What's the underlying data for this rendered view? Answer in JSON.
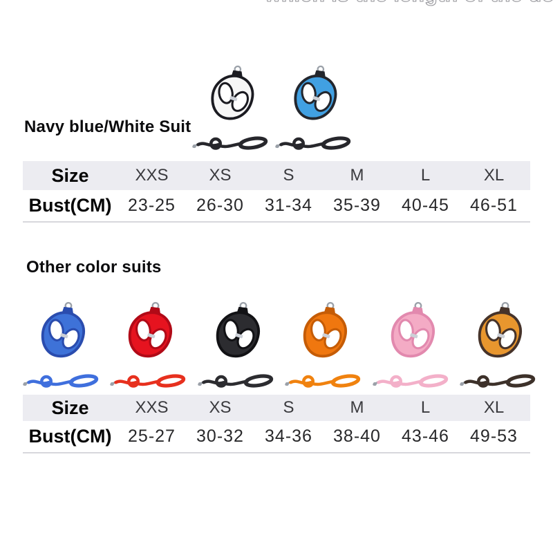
{
  "page": {
    "background": "#ffffff"
  },
  "top_caption": "which is the length of the dog's bust.",
  "metal_color": "#9ba1a9",
  "reflective_strip_color": "#ccd0d7",
  "table_header_bg": "#ececf1",
  "sections": [
    {
      "heading": "Navy blue/White Suit",
      "products": [
        {
          "name": "navy-blue-white",
          "body": "#f6f6f6",
          "trim": "#1b1b21",
          "leash": "#27272c"
        },
        {
          "name": "blue-sky",
          "body": "#41a0e2",
          "trim": "#23262d",
          "leash": "#27272c"
        }
      ],
      "table": {
        "size_label": "Size",
        "bust_label": "Bust(CM)",
        "sizes": [
          "XXS",
          "XS",
          "S",
          "M",
          "L",
          "XL"
        ],
        "busts": [
          "23-25",
          "26-30",
          "31-34",
          "35-39",
          "40-45",
          "46-51"
        ]
      }
    },
    {
      "heading": "Other color suits",
      "products": [
        {
          "name": "blue",
          "body": "#3e72d8",
          "trim": "#2a4cae",
          "leash": "#3f6fdd"
        },
        {
          "name": "red",
          "body": "#e6131f",
          "trim": "#b10a17",
          "leash": "#e7301e"
        },
        {
          "name": "black",
          "body": "#2c2c30",
          "trim": "#121215",
          "leash": "#2c2c30"
        },
        {
          "name": "orange",
          "body": "#f0770f",
          "trim": "#c55c06",
          "leash": "#f0820f"
        },
        {
          "name": "pink",
          "body": "#f4abc5",
          "trim": "#e289ae",
          "leash": "#f3b0c9"
        },
        {
          "name": "orange-brown",
          "body": "#e8962e",
          "trim": "#46332a",
          "leash": "#3d312a"
        }
      ],
      "table": {
        "size_label": "Size",
        "bust_label": "Bust(CM)",
        "sizes": [
          "XXS",
          "XS",
          "S",
          "M",
          "L",
          "XL"
        ],
        "busts": [
          "25-27",
          "30-32",
          "34-36",
          "38-40",
          "43-46",
          "49-53"
        ]
      }
    }
  ]
}
